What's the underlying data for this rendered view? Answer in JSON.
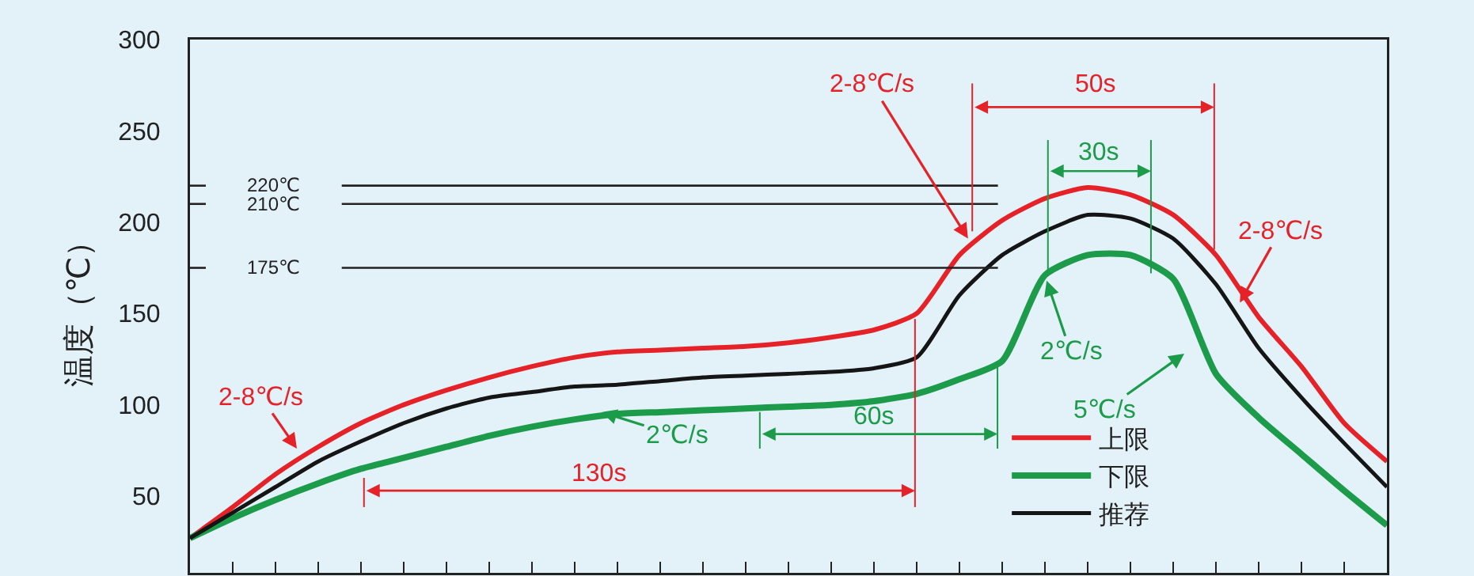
{
  "chart_data": {
    "type": "line",
    "ylabel": "温度（℃）",
    "categories": [
      null,
      null,
      null,
      null,
      null,
      null,
      null,
      null,
      null,
      null,
      null,
      null,
      null,
      null,
      null,
      null,
      null,
      null,
      null,
      null,
      null,
      null,
      null,
      null,
      null,
      null,
      null,
      null,
      null
    ],
    "series": [
      {
        "name": "上限",
        "color": "#e52228",
        "values": [
          27,
          44,
          62,
          77,
          90,
          100,
          108,
          115,
          121,
          126,
          129,
          130,
          131,
          132,
          134,
          137,
          141,
          150,
          182,
          201,
          213,
          219,
          215,
          204,
          182,
          148,
          121,
          90,
          69
        ]
      },
      {
        "name": "下限",
        "color": "#1c9b4a",
        "values": [
          27,
          38,
          48,
          57,
          65,
          71,
          77,
          83,
          88,
          92,
          95,
          96,
          97,
          98,
          99,
          100,
          102,
          106,
          114,
          124,
          171,
          182,
          182,
          169,
          117,
          93,
          73,
          53,
          34
        ]
      },
      {
        "name": "推荐",
        "color": "#151515",
        "values": [
          27,
          41,
          55,
          69,
          80,
          90,
          98,
          104,
          107,
          110,
          111,
          113,
          115,
          116,
          117,
          118,
          120,
          126,
          160,
          182,
          195,
          204,
          202,
          191,
          166,
          131,
          104,
          79,
          55
        ]
      }
    ],
    "ylim": [
      8,
      300
    ],
    "yticks": [
      50,
      100,
      150,
      200,
      250,
      300
    ],
    "ref_lines": [
      {
        "axis": "y",
        "value": 220,
        "label": "220℃",
        "color": "#222222"
      },
      {
        "axis": "y",
        "value": 210,
        "label": "210℃",
        "color": "#222222"
      },
      {
        "axis": "y",
        "value": 175,
        "label": "175℃",
        "color": "#222222"
      }
    ],
    "annotations": [
      "2-8℃/s",
      "2-8℃/s",
      "2-8℃/s",
      "2℃/s",
      "2℃/s",
      "5℃/s",
      "130s",
      "60s",
      "50s",
      "30s"
    ],
    "legend": "bottom right",
    "grid": false,
    "marker": "none",
    "line_style": "solid",
    "tick_labels": "y"
  }
}
